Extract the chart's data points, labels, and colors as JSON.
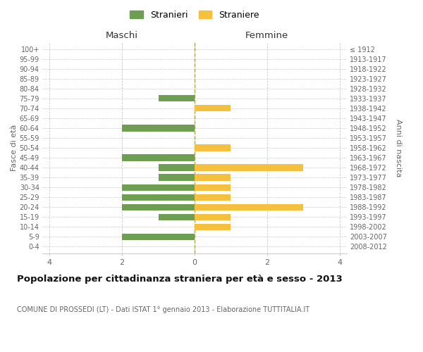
{
  "age_groups": [
    "0-4",
    "5-9",
    "10-14",
    "15-19",
    "20-24",
    "25-29",
    "30-34",
    "35-39",
    "40-44",
    "45-49",
    "50-54",
    "55-59",
    "60-64",
    "65-69",
    "70-74",
    "75-79",
    "80-84",
    "85-89",
    "90-94",
    "95-99",
    "100+"
  ],
  "birth_years": [
    "2008-2012",
    "2003-2007",
    "1998-2002",
    "1993-1997",
    "1988-1992",
    "1983-1987",
    "1978-1982",
    "1973-1977",
    "1968-1972",
    "1963-1967",
    "1958-1962",
    "1953-1957",
    "1948-1952",
    "1943-1947",
    "1938-1942",
    "1933-1937",
    "1928-1932",
    "1923-1927",
    "1918-1922",
    "1913-1917",
    "≤ 1912"
  ],
  "males": [
    0,
    2,
    0,
    1,
    2,
    2,
    2,
    1,
    1,
    2,
    0,
    0,
    2,
    0,
    0,
    1,
    0,
    0,
    0,
    0,
    0
  ],
  "females": [
    0,
    0,
    1,
    1,
    3,
    1,
    1,
    1,
    3,
    0,
    1,
    0,
    0,
    0,
    1,
    0,
    0,
    0,
    0,
    0,
    0
  ],
  "male_color": "#6e9e52",
  "female_color": "#f5c03e",
  "title": "Popolazione per cittadinanza straniera per età e sesso - 2013",
  "subtitle": "COMUNE DI PROSSEDI (LT) - Dati ISTAT 1° gennaio 2013 - Elaborazione TUTTITALIA.IT",
  "xlabel_left": "Maschi",
  "xlabel_right": "Femmine",
  "ylabel_left": "Fasce di età",
  "ylabel_right": "Anni di nascita",
  "legend_males": "Stranieri",
  "legend_females": "Straniere",
  "xlim": [
    -4.2,
    4.2
  ],
  "xticks": [
    -4,
    -2,
    0,
    2,
    4
  ],
  "xticklabels": [
    "4",
    "2",
    "0",
    "2",
    "4"
  ],
  "background_color": "#ffffff",
  "grid_color": "#cccccc",
  "bar_height": 0.65,
  "dashed_line_color": "#aaa855"
}
